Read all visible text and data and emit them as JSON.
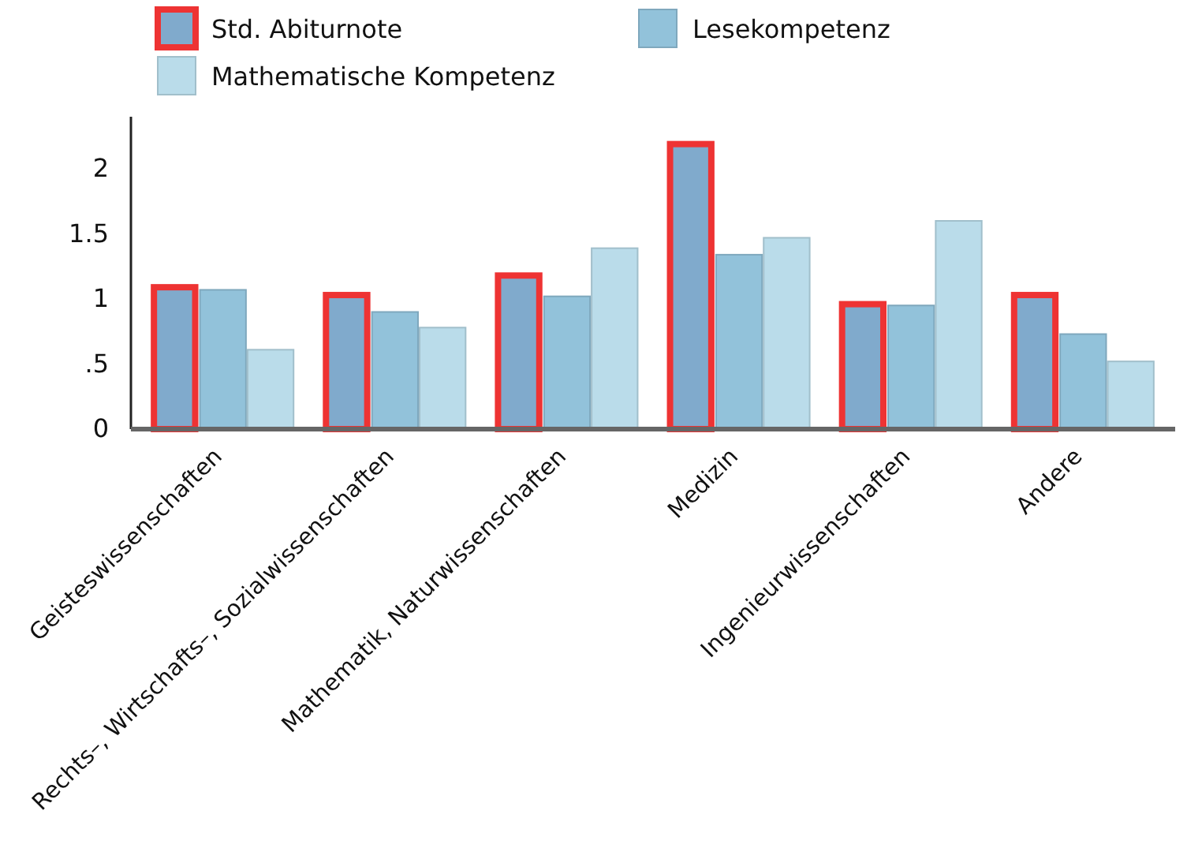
{
  "chart_data": {
    "type": "bar",
    "categories": [
      "Geisteswissenschaften",
      "Rechts–, Wirtschafts–, Sozialwissenschaften",
      "Mathematik, Naturwissenschaften",
      "Medizin",
      "Ingenieurwissenschaften",
      "Andere"
    ],
    "series": [
      {
        "name": "Std. Abiturnote",
        "color": "#80aacc",
        "values": [
          1.09,
          1.03,
          1.18,
          2.19,
          0.96,
          1.03
        ]
      },
      {
        "name": "Lesekompetenz",
        "color": "#92c2da",
        "values": [
          1.07,
          0.9,
          1.02,
          1.34,
          0.95,
          0.73
        ]
      },
      {
        "name": "Mathematische Kompetenz",
        "color": "#badcea",
        "values": [
          0.61,
          0.78,
          1.39,
          1.47,
          1.6,
          0.52
        ]
      }
    ],
    "ylim": [
      0,
      2.4
    ],
    "yticks": [
      0,
      {
        "value": 0.5,
        "label": ".5"
      },
      1,
      1.5,
      2
    ],
    "grid": false,
    "legend": "top"
  }
}
